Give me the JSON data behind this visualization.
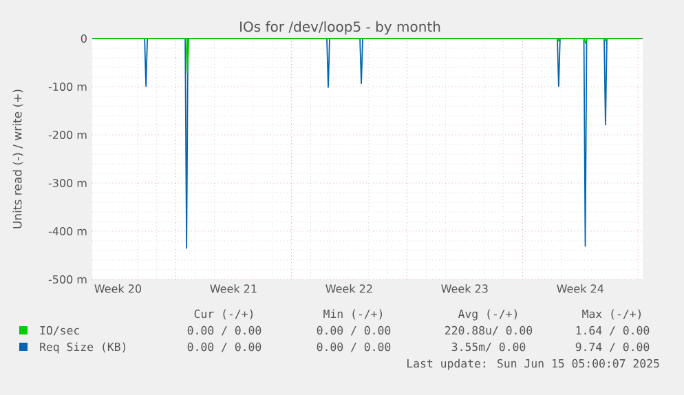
{
  "chart_data": {
    "type": "line",
    "title": "IOs for /dev/loop5 - by month",
    "ylabel": "Units read (-) / write (+)",
    "xlim": [
      "2025-05-13T22:30",
      "2025-06-16T06:45"
    ],
    "ylim": [
      -500,
      0
    ],
    "xticks": [
      {
        "value": "2025-05-15T12:00",
        "label": "Week 20"
      },
      {
        "value": "2025-05-22T12:00",
        "label": "Week 21"
      },
      {
        "value": "2025-05-29T12:00",
        "label": "Week 22"
      },
      {
        "value": "2025-06-05T12:00",
        "label": "Week 23"
      },
      {
        "value": "2025-06-12T12:00",
        "label": "Week 24"
      },
      {
        "value": "2025-05-19T00:00",
        "label": null
      },
      {
        "value": "2025-05-26T00:00",
        "label": null
      },
      {
        "value": "2025-06-02T00:00",
        "label": null
      },
      {
        "value": "2025-06-09T00:00",
        "label": null
      },
      {
        "value": "2025-06-16T00:00",
        "label": null
      }
    ],
    "yticks": [
      {
        "value": -500,
        "label": "-500 m"
      },
      {
        "value": -400,
        "label": "-400 m"
      },
      {
        "value": -300,
        "label": "-300 m"
      },
      {
        "value": -200,
        "label": "-200 m"
      },
      {
        "value": -100,
        "label": "-100 m"
      },
      0
    ],
    "grid": true,
    "legend": "bottom",
    "ref_lines": [
      {
        "axis": "y",
        "value": 0,
        "color": "#000000"
      }
    ],
    "series": [
      {
        "name": "IO/sec",
        "color": "#00cc00",
        "x": [
          "2025-05-13T23:00",
          "2025-05-19T14:50",
          "2025-05-19T16:50",
          "2025-05-19T18:50",
          "2025-06-11T02:35",
          "2025-06-11T04:35",
          "2025-06-11T06:35",
          "2025-06-12T17:35",
          "2025-06-12T19:35",
          "2025-06-12T21:35",
          "2025-06-13T22:50",
          "2025-06-14T00:50",
          "2025-06-14T02:50",
          "2025-06-16T06:00"
        ],
        "values": [
          0,
          0,
          -72,
          0,
          0,
          -5,
          0,
          0,
          -10,
          0,
          0,
          -5,
          0,
          0
        ]
      },
      {
        "name": "Req Size (KB)",
        "color": "#0066b3",
        "x": [
          "2025-05-13T23:00",
          "2025-05-17T02:40",
          "2025-05-17T04:40",
          "2025-05-17T06:40",
          "2025-05-19T13:40",
          "2025-05-19T15:40",
          "2025-05-19T17:40",
          "2025-05-28T03:35",
          "2025-05-28T05:35",
          "2025-05-28T07:35",
          "2025-05-30T03:40",
          "2025-05-30T05:40",
          "2025-05-30T07:40",
          "2025-06-11T02:35",
          "2025-06-11T04:35",
          "2025-06-11T06:35",
          "2025-06-12T17:15",
          "2025-06-12T19:15",
          "2025-06-12T21:15",
          "2025-06-13T22:40",
          "2025-06-14T00:40",
          "2025-06-14T02:40",
          "2025-06-16T06:00"
        ],
        "values": [
          0,
          0,
          -99,
          0,
          0,
          -435,
          0,
          0,
          -101,
          0,
          0,
          -93,
          0,
          0,
          -99,
          0,
          0,
          -431,
          0,
          0,
          -179,
          0,
          0
        ]
      }
    ],
    "annotations": [
      "Cur (-/+)",
      "Min (-/+)",
      "Avg (-/+)",
      "Max (-/+)",
      "0.00 / 0.00",
      "0.00 / 0.00",
      "220.88u/ 0.00",
      "1.64 / 0.00",
      "0.00 / 0.00",
      "0.00 / 0.00",
      "3.55m/ 0.00",
      "9.74 / 0.00",
      "Last update: Sun Jun 15 05:00:07 2025"
    ]
  }
}
